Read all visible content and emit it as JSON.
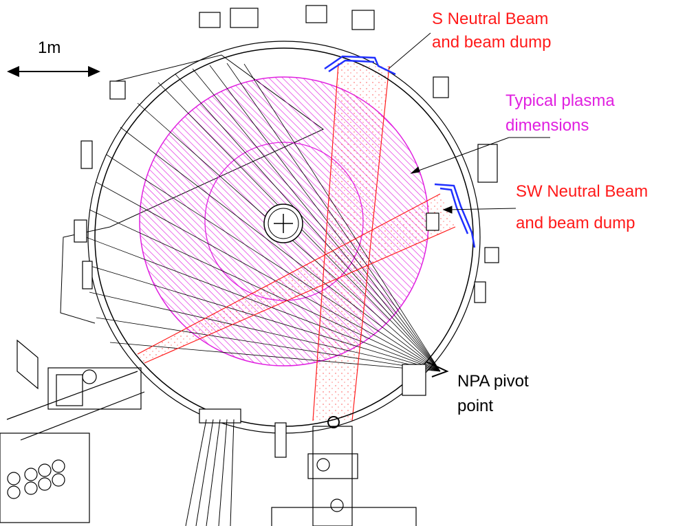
{
  "scale_bar": {
    "label": "1m"
  },
  "labels": {
    "s_beam": [
      "S Neutral Beam",
      "and beam dump"
    ],
    "plasma": [
      "Typical plasma",
      "dimensions"
    ],
    "sw_beam": [
      "SW Neutral Beam",
      "and beam dump"
    ],
    "npa": [
      "NPA pivot",
      "point"
    ]
  },
  "colors": {
    "beam": "#ff1a1a",
    "plasma": "#e020e0",
    "beam_dump": "#2030ff",
    "structure": "#000000"
  }
}
